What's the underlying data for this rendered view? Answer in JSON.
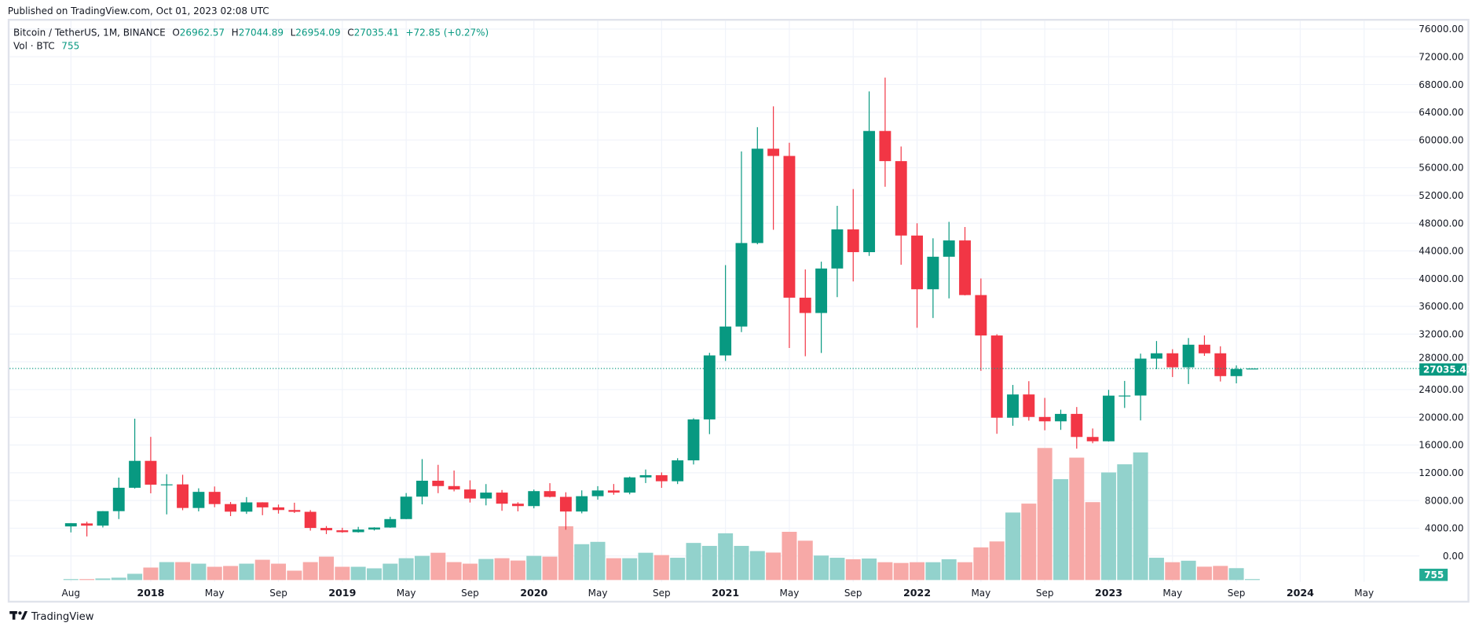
{
  "header": {
    "published": "Published on TradingView.com, Oct 01, 2023 02:08 UTC"
  },
  "legend": {
    "symbol": "Bitcoin / TetherUS, 1M, BINANCE",
    "o_label": "O",
    "o_value": "26962.57",
    "h_label": "H",
    "h_value": "27044.89",
    "l_label": "L",
    "l_value": "26954.09",
    "c_label": "C",
    "c_value": "27035.41",
    "change": "+72.85 (+0.27%)",
    "vol_label": "Vol · BTC",
    "vol_value": "755"
  },
  "footer": {
    "brand": "TradingView"
  },
  "colors": {
    "up": "#089981",
    "down": "#f23645",
    "vol_up": "#92d2cc",
    "vol_down": "#f7a9a7",
    "grid": "#f0f3fa",
    "axis_text": "#131722"
  },
  "chart_data": {
    "type": "candlestick",
    "title": "",
    "xlabel": "",
    "ylabel": "",
    "ylim": [
      0,
      76000
    ],
    "grid": true,
    "price_ticks": [
      "76000.00",
      "72000.00",
      "68000.00",
      "64000.00",
      "60000.00",
      "56000.00",
      "52000.00",
      "48000.00",
      "44000.00",
      "40000.00",
      "36000.00",
      "32000.00",
      "28000.00",
      "24000.00",
      "20000.00",
      "16000.00",
      "12000.00",
      "8000.00",
      "4000.00",
      "0.00"
    ],
    "time_ticks": [
      {
        "label": "Aug",
        "t": "2017-08",
        "bold": false
      },
      {
        "label": "2018",
        "t": "2018-01",
        "bold": true
      },
      {
        "label": "May",
        "t": "2018-05",
        "bold": false
      },
      {
        "label": "Sep",
        "t": "2018-09",
        "bold": false
      },
      {
        "label": "2019",
        "t": "2019-01",
        "bold": true
      },
      {
        "label": "May",
        "t": "2019-05",
        "bold": false
      },
      {
        "label": "Sep",
        "t": "2019-09",
        "bold": false
      },
      {
        "label": "2020",
        "t": "2020-01",
        "bold": true
      },
      {
        "label": "May",
        "t": "2020-05",
        "bold": false
      },
      {
        "label": "Sep",
        "t": "2020-09",
        "bold": false
      },
      {
        "label": "2021",
        "t": "2021-01",
        "bold": true
      },
      {
        "label": "May",
        "t": "2021-05",
        "bold": false
      },
      {
        "label": "Sep",
        "t": "2021-09",
        "bold": false
      },
      {
        "label": "2022",
        "t": "2022-01",
        "bold": true
      },
      {
        "label": "May",
        "t": "2022-05",
        "bold": false
      },
      {
        "label": "Sep",
        "t": "2022-09",
        "bold": false
      },
      {
        "label": "2023",
        "t": "2023-01",
        "bold": true
      },
      {
        "label": "May",
        "t": "2023-05",
        "bold": false
      },
      {
        "label": "Sep",
        "t": "2023-09",
        "bold": false
      },
      {
        "label": "2024",
        "t": "2024-01",
        "bold": true
      },
      {
        "label": "May",
        "t": "2024-05",
        "bold": false
      }
    ],
    "last_price": 27035.41,
    "last_price_label": "27035.41",
    "last_volume_label": "755",
    "candles": [
      {
        "t": "2017-08",
        "o": 4261.48,
        "h": 4745.42,
        "l": 3400,
        "c": 4724.89,
        "v": 47000
      },
      {
        "t": "2017-09",
        "o": 4689.89,
        "h": 4939.19,
        "l": 2817,
        "c": 4378.51,
        "v": 47000
      },
      {
        "t": "2017-10",
        "o": 4378.49,
        "h": 6470,
        "l": 4110,
        "c": 6463,
        "v": 95000
      },
      {
        "t": "2017-11",
        "o": 6463,
        "h": 11300,
        "l": 5325,
        "c": 9838.96,
        "v": 142000
      },
      {
        "t": "2017-12",
        "o": 9837,
        "h": 19798.68,
        "l": 9722,
        "c": 13716.36,
        "v": 378000
      },
      {
        "t": "2018-01",
        "o": 13715.65,
        "h": 17176.24,
        "l": 9035,
        "c": 10285.1,
        "v": 756000
      },
      {
        "t": "2018-02",
        "o": 10285.1,
        "h": 11786,
        "l": 6000,
        "c": 10326.5,
        "v": 1087000
      },
      {
        "t": "2018-03",
        "o": 10325.64,
        "h": 11710,
        "l": 6600.1,
        "c": 6923.91,
        "v": 1087000
      },
      {
        "t": "2018-04",
        "o": 6922,
        "h": 9759.82,
        "l": 6430,
        "c": 9246.01,
        "v": 992000
      },
      {
        "t": "2018-05",
        "o": 9246.01,
        "h": 10020,
        "l": 7032.95,
        "c": 7485.01,
        "v": 803000
      },
      {
        "t": "2018-06",
        "o": 7485.01,
        "h": 7786.69,
        "l": 5750,
        "c": 6391.08,
        "v": 851000
      },
      {
        "t": "2018-07",
        "o": 6391.08,
        "h": 8491.77,
        "l": 6070,
        "c": 7730.93,
        "v": 992000
      },
      {
        "t": "2018-08",
        "o": 7735.67,
        "h": 7750,
        "l": 5880,
        "c": 7011.21,
        "v": 1229000
      },
      {
        "t": "2018-09",
        "o": 7011.21,
        "h": 7410,
        "l": 6111,
        "c": 6626.57,
        "v": 992000
      },
      {
        "t": "2018-10",
        "o": 6626.57,
        "h": 7680,
        "l": 6205,
        "c": 6371.93,
        "v": 567000
      },
      {
        "t": "2018-11",
        "o": 6369.52,
        "h": 6615.15,
        "l": 3652.66,
        "c": 4041.32,
        "v": 1087000
      },
      {
        "t": "2018-12",
        "o": 4041.27,
        "h": 4312.99,
        "l": 3156.26,
        "c": 3702.9,
        "v": 1418000
      },
      {
        "t": "2019-01",
        "o": 3701.23,
        "h": 4069.8,
        "l": 3349.92,
        "c": 3434.1,
        "v": 803000
      },
      {
        "t": "2019-02",
        "o": 3434.1,
        "h": 4198,
        "l": 3373.1,
        "c": 3813.69,
        "v": 803000
      },
      {
        "t": "2019-03",
        "o": 3814.26,
        "h": 4140,
        "l": 3670.69,
        "c": 4103.95,
        "v": 709000
      },
      {
        "t": "2019-04",
        "o": 4102.44,
        "h": 5656.74,
        "l": 4067,
        "c": 5320.81,
        "v": 992000
      },
      {
        "t": "2019-05",
        "o": 5321.94,
        "h": 9074.26,
        "l": 5316.2,
        "c": 8555,
        "v": 1323000
      },
      {
        "t": "2019-06",
        "o": 8555,
        "h": 13970,
        "l": 7444.58,
        "c": 10854.1,
        "v": 1465000
      },
      {
        "t": "2019-07",
        "o": 10854.1,
        "h": 13147.08,
        "l": 9060,
        "c": 10080.53,
        "v": 1654000
      },
      {
        "t": "2019-08",
        "o": 10080.53,
        "h": 12325,
        "l": 9320,
        "c": 9588.74,
        "v": 1087000
      },
      {
        "t": "2019-09",
        "o": 9588.74,
        "h": 10905.87,
        "l": 7710,
        "c": 8289.34,
        "v": 992000
      },
      {
        "t": "2019-10",
        "o": 8289.97,
        "h": 10370,
        "l": 7300,
        "c": 9140.85,
        "v": 1276000
      },
      {
        "t": "2019-11",
        "o": 9140.86,
        "h": 9513.68,
        "l": 6515,
        "c": 7541.89,
        "v": 1323000
      },
      {
        "t": "2019-12",
        "o": 7540.63,
        "h": 7750,
        "l": 6435,
        "c": 7195.23,
        "v": 1181000
      },
      {
        "t": "2020-01",
        "o": 7195.24,
        "h": 9578,
        "l": 6871.04,
        "c": 9352.89,
        "v": 1465000
      },
      {
        "t": "2020-02",
        "o": 9351.71,
        "h": 10500,
        "l": 8445,
        "c": 8523.61,
        "v": 1418000
      },
      {
        "t": "2020-03",
        "o": 8523.61,
        "h": 9188,
        "l": 3782.13,
        "c": 6410.44,
        "v": 3260000
      },
      {
        "t": "2020-04",
        "o": 6412.14,
        "h": 9460,
        "l": 6150.11,
        "c": 8620,
        "v": 2174000
      },
      {
        "t": "2020-05",
        "o": 8620,
        "h": 10067,
        "l": 8117,
        "c": 9448.27,
        "v": 2315000
      },
      {
        "t": "2020-06",
        "o": 9448.27,
        "h": 10380,
        "l": 8833,
        "c": 9138.55,
        "v": 1323000
      },
      {
        "t": "2020-07",
        "o": 9138.08,
        "h": 11444,
        "l": 8893.03,
        "c": 11335.46,
        "v": 1323000
      },
      {
        "t": "2020-08",
        "o": 11335.46,
        "h": 12468,
        "l": 10518.5,
        "c": 11649.51,
        "v": 1654000
      },
      {
        "t": "2020-09",
        "o": 11649.51,
        "h": 12050.85,
        "l": 9825,
        "c": 10776.59,
        "v": 1512000
      },
      {
        "t": "2020-10",
        "o": 10776.59,
        "h": 14100,
        "l": 10374,
        "c": 13791,
        "v": 1350000
      },
      {
        "t": "2020-11",
        "o": 13791,
        "h": 19863.16,
        "l": 13195.05,
        "c": 19695.87,
        "v": 2250000
      },
      {
        "t": "2020-12",
        "o": 19695.87,
        "h": 29300,
        "l": 17572.33,
        "c": 28923.63,
        "v": 2070000
      },
      {
        "t": "2021-01",
        "o": 28923.63,
        "h": 41950,
        "l": 28130,
        "c": 33092.98,
        "v": 2835000
      },
      {
        "t": "2021-02",
        "o": 33092.97,
        "h": 58352.8,
        "l": 32296.16,
        "c": 45135.66,
        "v": 2070000
      },
      {
        "t": "2021-03",
        "o": 45134.11,
        "h": 61844,
        "l": 44950.53,
        "c": 58740.55,
        "v": 1755000
      },
      {
        "t": "2021-04",
        "o": 58739.46,
        "h": 64854,
        "l": 47044.01,
        "c": 57694.27,
        "v": 1665000
      },
      {
        "t": "2021-05",
        "o": 57697.25,
        "h": 59600,
        "l": 30000,
        "c": 37253.81,
        "v": 2925000
      },
      {
        "t": "2021-06",
        "o": 37253.82,
        "h": 41330,
        "l": 28805,
        "c": 35045,
        "v": 2385000
      },
      {
        "t": "2021-07",
        "o": 35045,
        "h": 42448,
        "l": 29278,
        "c": 41461.83,
        "v": 1485000
      },
      {
        "t": "2021-08",
        "o": 41461.84,
        "h": 50500,
        "l": 37332.7,
        "c": 47100.89,
        "v": 1350000
      },
      {
        "t": "2021-09",
        "o": 47100.89,
        "h": 52920,
        "l": 39600,
        "c": 43824.43,
        "v": 1260000
      },
      {
        "t": "2021-10",
        "o": 43820.01,
        "h": 67000,
        "l": 43283.03,
        "c": 61299.8,
        "v": 1305000
      },
      {
        "t": "2021-11",
        "o": 61299.81,
        "h": 69000,
        "l": 53256.64,
        "c": 56950.56,
        "v": 1080000
      },
      {
        "t": "2021-12",
        "o": 56950.56,
        "h": 59053.55,
        "l": 42000.3,
        "c": 46216.93,
        "v": 1035000
      },
      {
        "t": "2022-01",
        "o": 46216.93,
        "h": 47990,
        "l": 32917.17,
        "c": 38466.9,
        "v": 1080000
      },
      {
        "t": "2022-02",
        "o": 38466.9,
        "h": 45821,
        "l": 34322.28,
        "c": 43160,
        "v": 1080000
      },
      {
        "t": "2022-03",
        "o": 43160,
        "h": 48189.84,
        "l": 37155,
        "c": 45510.34,
        "v": 1260000
      },
      {
        "t": "2022-04",
        "o": 45510.35,
        "h": 47444.11,
        "l": 37578.2,
        "c": 37630.8,
        "v": 1080000
      },
      {
        "t": "2022-05",
        "o": 37630.8,
        "h": 40023.77,
        "l": 26700,
        "c": 31801.04,
        "v": 1980000
      },
      {
        "t": "2022-06",
        "o": 31801.05,
        "h": 31982.97,
        "l": 17622,
        "c": 19942.21,
        "v": 2340000
      },
      {
        "t": "2022-07",
        "o": 19942.21,
        "h": 24668,
        "l": 18781,
        "c": 23293.32,
        "v": 4095000
      },
      {
        "t": "2022-08",
        "o": 23296.36,
        "h": 25211.32,
        "l": 19520,
        "c": 20050.02,
        "v": 4635000
      },
      {
        "t": "2022-09",
        "o": 20048.44,
        "h": 22799,
        "l": 18125.98,
        "c": 19422.61,
        "v": 8010000
      },
      {
        "t": "2022-10",
        "o": 19422.61,
        "h": 21096,
        "l": 18190,
        "c": 20490.74,
        "v": 6120000
      },
      {
        "t": "2022-11",
        "o": 20490.74,
        "h": 21480.65,
        "l": 15476,
        "c": 17163.64,
        "v": 7425000
      },
      {
        "t": "2022-12",
        "o": 17165.53,
        "h": 18387.95,
        "l": 16256.3,
        "c": 16542.4,
        "v": 4725000
      },
      {
        "t": "2023-01",
        "o": 16541.77,
        "h": 23960.54,
        "l": 16499.01,
        "c": 23125.13,
        "v": 6525000
      },
      {
        "t": "2023-02",
        "o": 23125.13,
        "h": 25250,
        "l": 21351.07,
        "c": 23141.57,
        "v": 7020000
      },
      {
        "t": "2023-03",
        "o": 23141.57,
        "h": 29184.68,
        "l": 19549.09,
        "c": 28465.36,
        "v": 7740000
      },
      {
        "t": "2023-04",
        "o": 28465.36,
        "h": 31000,
        "l": 26942.82,
        "c": 29233.21,
        "v": 1350000
      },
      {
        "t": "2023-05",
        "o": 29233.2,
        "h": 29820,
        "l": 25811.46,
        "c": 27210.35,
        "v": 1080000
      },
      {
        "t": "2023-06",
        "o": 27210.36,
        "h": 31431.94,
        "l": 24800,
        "c": 30472,
        "v": 1170000
      },
      {
        "t": "2023-07",
        "o": 30471.99,
        "h": 31804.2,
        "l": 28861.9,
        "c": 29232.25,
        "v": 810000
      },
      {
        "t": "2023-08",
        "o": 29232.26,
        "h": 30244,
        "l": 25166,
        "c": 25940.78,
        "v": 855000
      },
      {
        "t": "2023-09",
        "o": 25940.77,
        "h": 27483.57,
        "l": 24901,
        "c": 26962.56,
        "v": 720000
      },
      {
        "t": "2023-10",
        "o": 26962.57,
        "h": 27044.89,
        "l": 26954.09,
        "c": 27035.41,
        "v": 755
      }
    ]
  }
}
